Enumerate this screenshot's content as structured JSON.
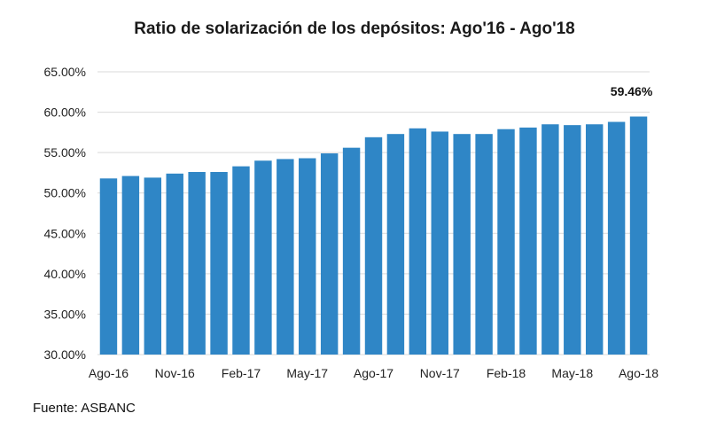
{
  "chart_data": {
    "type": "bar",
    "title": "Ratio de solarización de los depósitos: Ago'16 - Ago'18",
    "categories": [
      "Ago-16",
      "Sep-16",
      "Oct-16",
      "Nov-16",
      "Dic-16",
      "Ene-17",
      "Feb-17",
      "Mar-17",
      "Abr-17",
      "May-17",
      "Jun-17",
      "Jul-17",
      "Ago-17",
      "Sep-17",
      "Oct-17",
      "Nov-17",
      "Dic-17",
      "Ene-18",
      "Feb-18",
      "Mar-18",
      "Abr-18",
      "May-18",
      "Jun-18",
      "Jul-18",
      "Ago-18"
    ],
    "tick_labels": [
      "Ago-16",
      "Nov-16",
      "Feb-17",
      "May-17",
      "Ago-17",
      "Nov-17",
      "Feb-18",
      "May-18",
      "Ago-18"
    ],
    "tick_every": 3,
    "values": [
      51.8,
      52.1,
      51.9,
      52.4,
      52.6,
      52.6,
      53.3,
      54.0,
      54.2,
      54.3,
      54.9,
      55.6,
      56.9,
      57.3,
      58.0,
      57.6,
      57.3,
      57.3,
      57.9,
      58.1,
      58.5,
      58.4,
      58.5,
      58.8,
      59.46
    ],
    "yticks": [
      "30.00%",
      "35.00%",
      "40.00%",
      "45.00%",
      "50.00%",
      "55.00%",
      "60.00%",
      "65.00%"
    ],
    "ylim": [
      30,
      65
    ],
    "ystep": 5,
    "last_label": "59.46%",
    "xlabel": "",
    "ylabel": "",
    "grid": true,
    "bar_color": "#2f86c6",
    "grid_color": "#d9d9d9"
  },
  "source": "Fuente: ASBANC"
}
